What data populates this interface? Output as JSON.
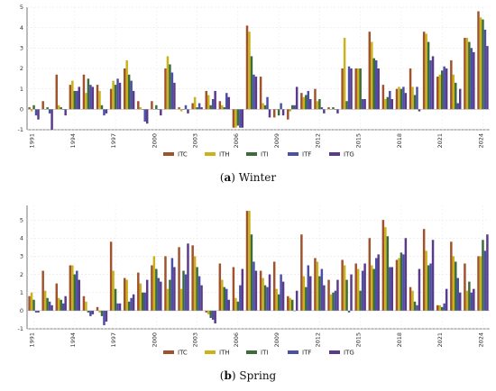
{
  "series_colors": {
    "ITC": "#a0522d",
    "ITH": "#c9b21b",
    "ITI": "#3d6b3a",
    "ITF": "#4b4fa6",
    "ITG": "#5a3a8a"
  },
  "chart_data": [
    {
      "type": "bar",
      "caption_letter": "(a)",
      "caption_text": "Winter",
      "x": [
        1991,
        1992,
        1993,
        1994,
        1995,
        1996,
        1997,
        1998,
        1999,
        2000,
        2001,
        2002,
        2003,
        2004,
        2005,
        2006,
        2007,
        2008,
        2009,
        2010,
        2011,
        2012,
        2013,
        2014,
        2015,
        2016,
        2017,
        2018,
        2019,
        2020,
        2021,
        2022,
        2023,
        2024
      ],
      "xticks": [
        "1991",
        "1994",
        "1997",
        "2000",
        "2003",
        "2006",
        "2009",
        "2012",
        "2015",
        "2018",
        "2021",
        "2024"
      ],
      "ylim": [
        -1,
        5
      ],
      "yticks": [
        "-1",
        "0",
        "1",
        "2",
        "3",
        "4",
        "5"
      ],
      "grid": true,
      "legend_position": "bottom",
      "series": [
        {
          "name": "ITC",
          "values": [
            0.1,
            0.4,
            1.7,
            1.2,
            1.7,
            1.2,
            1.0,
            2.0,
            0.4,
            0.4,
            2.0,
            0.1,
            0.3,
            0.9,
            0.4,
            -0.9,
            4.1,
            1.6,
            -0.4,
            -0.5,
            0.8,
            1.0,
            0.1,
            2.0,
            2.0,
            3.8,
            1.2,
            1.0,
            2.0,
            3.8,
            1.6,
            2.4,
            3.5,
            4.8
          ]
        },
        {
          "name": "ITH",
          "values": [
            -0.1,
            0.0,
            0.2,
            1.4,
            0.8,
            0.9,
            1.4,
            2.4,
            0.1,
            0.0,
            2.6,
            -0.1,
            0.6,
            0.7,
            0.2,
            -0.9,
            3.8,
            0.3,
            0.0,
            -0.1,
            0.6,
            0.4,
            0.0,
            3.5,
            2.0,
            3.3,
            0.5,
            1.1,
            1.1,
            3.7,
            1.7,
            1.7,
            3.5,
            4.5
          ]
        },
        {
          "name": "ITI",
          "values": [
            0.2,
            0.1,
            0.1,
            0.9,
            1.5,
            0.2,
            1.2,
            1.7,
            0.0,
            0.2,
            2.2,
            0.0,
            0.1,
            0.2,
            0.1,
            -0.8,
            2.6,
            0.2,
            -0.3,
            0.2,
            0.7,
            0.5,
            0.1,
            0.4,
            2.0,
            2.5,
            0.6,
            1.0,
            0.7,
            3.3,
            1.9,
            1.3,
            3.3,
            4.4
          ]
        },
        {
          "name": "ITF",
          "values": [
            -0.3,
            -0.2,
            0.0,
            0.9,
            1.2,
            -0.3,
            1.5,
            1.4,
            -0.6,
            0.0,
            1.8,
            0.2,
            0.3,
            0.5,
            0.8,
            -0.9,
            1.7,
            0.6,
            0.3,
            0.2,
            0.9,
            0.1,
            0.0,
            2.1,
            0.5,
            2.4,
            0.9,
            1.1,
            1.1,
            2.4,
            2.1,
            0.3,
            3.0,
            3.9
          ]
        },
        {
          "name": "ITG",
          "values": [
            -0.5,
            -1.0,
            -0.3,
            1.1,
            1.1,
            -0.2,
            1.3,
            0.9,
            -0.7,
            -0.3,
            1.3,
            -0.2,
            0.1,
            0.9,
            0.6,
            -0.9,
            1.6,
            -0.4,
            -0.3,
            1.1,
            0.5,
            -0.2,
            -0.2,
            2.0,
            0.5,
            2.0,
            0.5,
            0.8,
            -0.1,
            2.6,
            2.0,
            1.0,
            2.8,
            3.1
          ]
        }
      ]
    },
    {
      "type": "bar",
      "caption_letter": "(b)",
      "caption_text": "Spring",
      "x": [
        1991,
        1992,
        1993,
        1994,
        1995,
        1996,
        1997,
        1998,
        1999,
        2000,
        2001,
        2002,
        2003,
        2004,
        2005,
        2006,
        2007,
        2008,
        2009,
        2010,
        2011,
        2012,
        2013,
        2014,
        2015,
        2016,
        2017,
        2018,
        2019,
        2020,
        2021,
        2022,
        2023,
        2024
      ],
      "xticks": [
        "1991",
        "1994",
        "1997",
        "2000",
        "2003",
        "2006",
        "2009",
        "2012",
        "2015",
        "2018",
        "2021",
        "2024"
      ],
      "ylim": [
        -1,
        5.8
      ],
      "yticks": [
        "-1",
        "0",
        "1",
        "2",
        "3",
        "4",
        "5"
      ],
      "grid": true,
      "legend_position": "bottom",
      "series": [
        {
          "name": "ITC",
          "values": [
            0.8,
            2.2,
            1.5,
            2.5,
            0.8,
            0.2,
            3.8,
            1.8,
            2.1,
            2.5,
            3.0,
            3.5,
            3.6,
            -0.1,
            2.6,
            2.4,
            5.5,
            2.2,
            2.7,
            0.8,
            4.2,
            2.9,
            1.7,
            2.8,
            2.6,
            4.0,
            5.0,
            2.8,
            1.3,
            4.5,
            0.3,
            3.8,
            2.6,
            3.0
          ]
        },
        {
          "name": "ITH",
          "values": [
            1.0,
            1.1,
            0.7,
            2.5,
            0.5,
            -0.1,
            2.2,
            1.7,
            1.5,
            3.0,
            1.2,
            1.2,
            3.0,
            -0.2,
            1.7,
            0.7,
            5.5,
            1.8,
            1.2,
            0.7,
            1.9,
            2.7,
            0.9,
            2.5,
            2.3,
            2.5,
            4.6,
            2.9,
            1.1,
            3.3,
            0.3,
            3.0,
            1.1,
            3.0
          ]
        },
        {
          "name": "ITI",
          "values": [
            0.6,
            0.7,
            0.6,
            2.0,
            -0.1,
            -0.3,
            1.2,
            0.5,
            1.0,
            2.3,
            1.7,
            2.2,
            2.4,
            -0.4,
            1.3,
            0.5,
            4.2,
            1.4,
            0.9,
            0.6,
            1.3,
            1.9,
            1.0,
            1.7,
            1.1,
            2.3,
            4.1,
            3.2,
            0.5,
            2.5,
            0.2,
            2.7,
            1.6,
            3.9
          ]
        },
        {
          "name": "ITF",
          "values": [
            -0.1,
            0.5,
            0.4,
            2.2,
            -0.3,
            -0.8,
            0.4,
            0.7,
            1.0,
            1.8,
            2.9,
            2.0,
            1.9,
            -0.5,
            1.2,
            1.4,
            2.7,
            1.3,
            2.0,
            0.0,
            2.5,
            2.3,
            1.1,
            -0.1,
            2.2,
            2.9,
            2.4,
            3.1,
            0.3,
            2.6,
            0.4,
            1.8,
            1.0,
            3.3
          ]
        },
        {
          "name": "ITG",
          "values": [
            -0.1,
            0.3,
            0.8,
            1.7,
            -0.2,
            -0.6,
            0.4,
            0.9,
            1.7,
            1.6,
            2.4,
            3.7,
            1.4,
            -0.7,
            0.6,
            2.3,
            2.2,
            2.0,
            1.6,
            1.1,
            1.9,
            1.4,
            1.7,
            2.0,
            2.6,
            3.1,
            2.4,
            4.0,
            2.3,
            3.9,
            1.2,
            1.0,
            1.2,
            4.2
          ]
        }
      ]
    }
  ]
}
